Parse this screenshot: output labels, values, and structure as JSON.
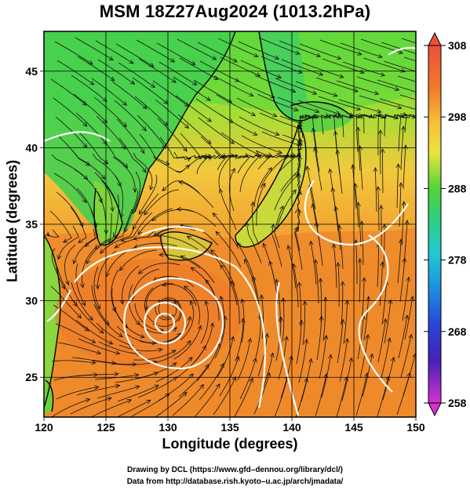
{
  "title": "MSM 18Z27Aug2024 (1013.2hPa)",
  "xlabel": "Longitude (degrees)",
  "ylabel": "Latitude  (degrees)",
  "credits": [
    "Drawing by DCL (https://www.gfd–dennou.org/library/dcl/)",
    "Data from http://database.rish.kyoto–u.ac.jp/arch/jmadata/"
  ],
  "map": {
    "lon_range": [
      120,
      150
    ],
    "lat_range": [
      22.4,
      47.6
    ],
    "lon_ticks": [
      "120",
      "125",
      "130",
      "135",
      "140",
      "145",
      "150"
    ],
    "lat_ticks": [
      "25",
      "30",
      "35",
      "40",
      "45"
    ],
    "typhoon_center": {
      "lon": 130.0,
      "lat": 29.4
    }
  },
  "colorbar": {
    "tick_labels": [
      "308",
      "298",
      "288",
      "278",
      "268",
      "258"
    ],
    "min": 258,
    "max": 308
  },
  "colors": {
    "warm": "#f08a2a",
    "mid": "#f4c23a",
    "green": "#49d43a",
    "land_green": "#3fcf55"
  }
}
